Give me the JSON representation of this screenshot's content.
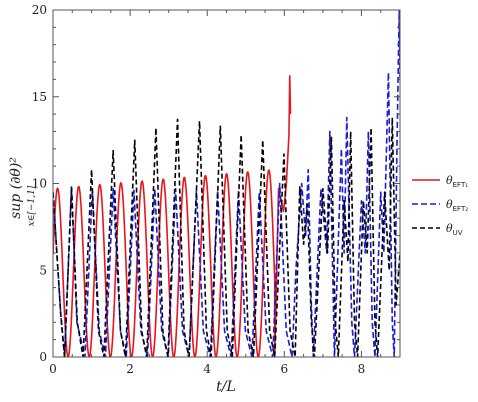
{
  "chart_data": {
    "type": "line",
    "xlabel": "t/L",
    "ylabel": "sup (∂θ)²",
    "ylabel_sub": "x∈[−1,1]",
    "xlim": [
      0,
      9
    ],
    "ylim": [
      0,
      20
    ],
    "xticks": [
      0,
      2,
      4,
      6,
      8
    ],
    "yticks": [
      0,
      5,
      10,
      15,
      20
    ],
    "grid": false,
    "legend_position": "right",
    "series": [
      {
        "name": "θ_EFT1",
        "label_main": "θ",
        "label_sub": "EFT₁",
        "color": "#e8151b",
        "dash": "solid",
        "period": 0.548,
        "phase": 0.43,
        "amp_start": 9.7,
        "amp_end": 10.8,
        "x_end": 5.75,
        "spike": [
          [
            5.75,
            0
          ],
          [
            5.85,
            9.7
          ],
          [
            5.98,
            8.4
          ],
          [
            6.05,
            9.9
          ],
          [
            6.12,
            12.8
          ],
          [
            6.14,
            16.2
          ],
          [
            6.16,
            14.0
          ]
        ]
      },
      {
        "name": "θ_EFT2",
        "label_main": "θ",
        "label_sub": "EFT₂",
        "color": "#1a1adb",
        "dash": "6,3",
        "points": [
          [
            0,
            9.5
          ],
          [
            0.2,
            2.5
          ],
          [
            0.3,
            0
          ],
          [
            0.48,
            9.8
          ],
          [
            0.62,
            2
          ],
          [
            0.83,
            0
          ],
          [
            1.02,
            9.6
          ],
          [
            1.2,
            1.5
          ],
          [
            1.36,
            0
          ],
          [
            1.56,
            9.7
          ],
          [
            1.75,
            1.5
          ],
          [
            1.9,
            0
          ],
          [
            2.1,
            9.6
          ],
          [
            2.28,
            1.5
          ],
          [
            2.45,
            0
          ],
          [
            2.64,
            9.7
          ],
          [
            2.82,
            1.5
          ],
          [
            2.99,
            0
          ],
          [
            3.18,
            9.7
          ],
          [
            3.36,
            1.5
          ],
          [
            3.53,
            0
          ],
          [
            3.72,
            9.6
          ],
          [
            3.9,
            1.5
          ],
          [
            4.08,
            0
          ],
          [
            4.27,
            9.6
          ],
          [
            4.45,
            1.5
          ],
          [
            4.62,
            0
          ],
          [
            4.81,
            9.6
          ],
          [
            4.99,
            1.5
          ],
          [
            5.16,
            0
          ],
          [
            5.35,
            9.5
          ],
          [
            5.53,
            1.5
          ],
          [
            5.7,
            0
          ],
          [
            5.88,
            10.0
          ],
          [
            6.05,
            1.5
          ],
          [
            6.2,
            0
          ],
          [
            6.3,
            5.0
          ],
          [
            6.45,
            10.0
          ],
          [
            6.55,
            7.0
          ],
          [
            6.62,
            10.8
          ],
          [
            6.7,
            3.0
          ],
          [
            6.75,
            0
          ],
          [
            6.95,
            9.7
          ],
          [
            7.1,
            6.0
          ],
          [
            7.18,
            13.0
          ],
          [
            7.3,
            0
          ],
          [
            7.48,
            12.0
          ],
          [
            7.55,
            6.0
          ],
          [
            7.62,
            13.8
          ],
          [
            7.75,
            2.0
          ],
          [
            7.82,
            0
          ],
          [
            8.0,
            9.0
          ],
          [
            8.1,
            6.0
          ],
          [
            8.18,
            13.0
          ],
          [
            8.28,
            2.0
          ],
          [
            8.35,
            0
          ],
          [
            8.5,
            9.5
          ],
          [
            8.58,
            6.0
          ],
          [
            8.7,
            16.4
          ],
          [
            8.8,
            2.0
          ],
          [
            8.85,
            0
          ],
          [
            8.92,
            12.0
          ],
          [
            8.98,
            20.0
          ],
          [
            9.0,
            16.0
          ]
        ]
      },
      {
        "name": "θ_UV",
        "label_main": "θ",
        "label_sub": "UV",
        "color": "#000000",
        "dash": "5,3",
        "points": [
          [
            0,
            9.5
          ],
          [
            0.2,
            2.5
          ],
          [
            0.3,
            0
          ],
          [
            0.48,
            9.8
          ],
          [
            0.63,
            2
          ],
          [
            0.78,
            0
          ],
          [
            1.0,
            10.8
          ],
          [
            1.18,
            1.5
          ],
          [
            1.32,
            0
          ],
          [
            1.56,
            11.9
          ],
          [
            1.75,
            1.5
          ],
          [
            1.88,
            0
          ],
          [
            2.12,
            12.5
          ],
          [
            2.3,
            1.5
          ],
          [
            2.43,
            0
          ],
          [
            2.67,
            13.2
          ],
          [
            2.85,
            1.5
          ],
          [
            2.98,
            0
          ],
          [
            3.23,
            13.7
          ],
          [
            3.4,
            1.5
          ],
          [
            3.53,
            0
          ],
          [
            3.8,
            13.6
          ],
          [
            3.98,
            1.5
          ],
          [
            4.1,
            0
          ],
          [
            4.34,
            13.3
          ],
          [
            4.52,
            1.5
          ],
          [
            4.65,
            0
          ],
          [
            4.88,
            12.8
          ],
          [
            5.06,
            1.5
          ],
          [
            5.2,
            0
          ],
          [
            5.44,
            12.5
          ],
          [
            5.62,
            1.5
          ],
          [
            5.75,
            0
          ],
          [
            5.99,
            11.7
          ],
          [
            6.15,
            1.5
          ],
          [
            6.28,
            0
          ],
          [
            6.4,
            9.8
          ],
          [
            6.5,
            6.5
          ],
          [
            6.6,
            8.8
          ],
          [
            6.7,
            2.0
          ],
          [
            6.78,
            0
          ],
          [
            7.0,
            9.7
          ],
          [
            7.12,
            6.0
          ],
          [
            7.22,
            12.7
          ],
          [
            7.32,
            2.0
          ],
          [
            7.4,
            0
          ],
          [
            7.55,
            9.0
          ],
          [
            7.65,
            5.5
          ],
          [
            7.72,
            13.0
          ],
          [
            7.82,
            2.0
          ],
          [
            7.9,
            0
          ],
          [
            8.05,
            9.0
          ],
          [
            8.15,
            6.0
          ],
          [
            8.25,
            13.2
          ],
          [
            8.35,
            2.0
          ],
          [
            8.42,
            0
          ],
          [
            8.6,
            9.5
          ],
          [
            8.72,
            5.0
          ],
          [
            8.8,
            13.8
          ],
          [
            8.9,
            3.0
          ],
          [
            9.0,
            6.0
          ]
        ]
      }
    ]
  }
}
